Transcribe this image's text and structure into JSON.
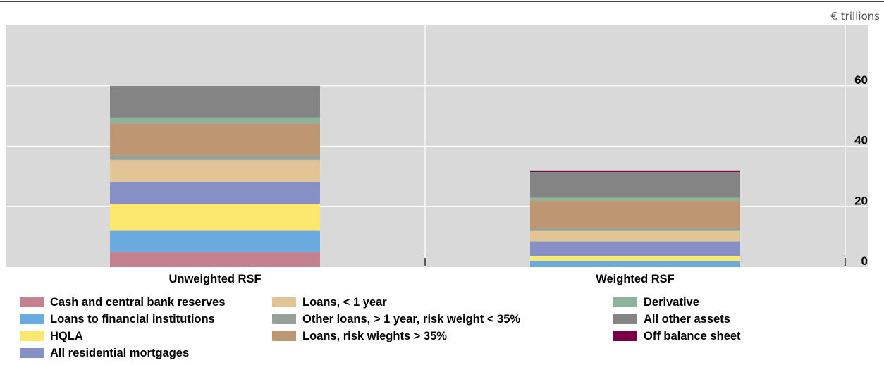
{
  "chart_data": {
    "type": "bar",
    "stacked": true,
    "unit_label": "€ trillions",
    "categories": [
      "Unweighted RSF",
      "Weighted RSF"
    ],
    "ylim": [
      0,
      80
    ],
    "yticks": [
      0,
      20,
      40,
      60
    ],
    "grid": true,
    "legend_position": "bottom",
    "series": [
      {
        "name": "Cash and central bank reserves",
        "color": "#c48291",
        "values": [
          5.0,
          0.0
        ]
      },
      {
        "name": "Loans to financial institutions",
        "color": "#6aaadf",
        "values": [
          7.0,
          2.0
        ]
      },
      {
        "name": "HQLA",
        "color": "#fde86e",
        "values": [
          9.0,
          1.5
        ]
      },
      {
        "name": "All residential mortgages",
        "color": "#8690c6",
        "values": [
          7.0,
          5.0
        ]
      },
      {
        "name": "Loans, < 1 year",
        "color": "#e3c494",
        "values": [
          7.5,
          3.5
        ]
      },
      {
        "name": "Other loans, > 1 year, risk weight < 35%",
        "color": "#95a198",
        "values": [
          1.5,
          1.0
        ]
      },
      {
        "name": "Loans, risk wieghts > 35%",
        "color": "#bd9672",
        "values": [
          10.5,
          9.0
        ]
      },
      {
        "name": "Derivative",
        "color": "#8db398",
        "values": [
          2.0,
          1.0
        ]
      },
      {
        "name": "All other assets",
        "color": "#848484",
        "values": [
          10.5,
          8.5
        ]
      },
      {
        "name": "Off balance sheet",
        "color": "#7b0043",
        "values": [
          0.0,
          0.5
        ]
      }
    ]
  }
}
